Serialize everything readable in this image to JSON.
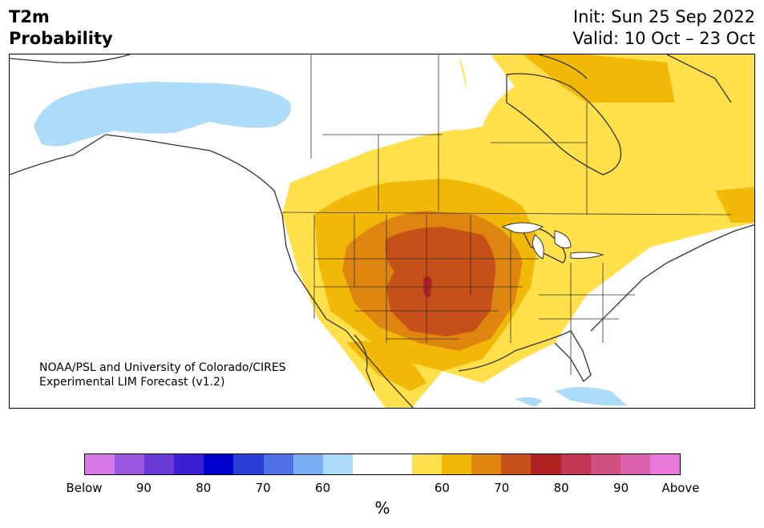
{
  "header": {
    "title_line1": "T2m",
    "title_line2": "Probability",
    "init_text": "Init: Sun 25 Sep 2022",
    "valid_text": "Valid: 10 Oct – 23 Oct"
  },
  "map": {
    "region": "North America",
    "credit_line1": "NOAA/PSL and University of Colorado/CIRES",
    "credit_line2": "Experimental LIM Forecast (v1.2)"
  },
  "colorbar": {
    "colors": [
      "#d77ae8",
      "#9b57e0",
      "#6a3ad8",
      "#3b1fd4",
      "#0000cc",
      "#2a3ed8",
      "#5072e8",
      "#79aef2",
      "#acdcf7",
      "#ffffff",
      "#ffffff",
      "#ffe04a",
      "#f2b808",
      "#de8510",
      "#c55018",
      "#b02222",
      "#c23654",
      "#cf4f80",
      "#dc62ae",
      "#e878da"
    ],
    "tick_labels": [
      "Below",
      "90",
      "80",
      "70",
      "60",
      "60",
      "70",
      "80",
      "90",
      "Above"
    ],
    "unit_label": "%"
  }
}
